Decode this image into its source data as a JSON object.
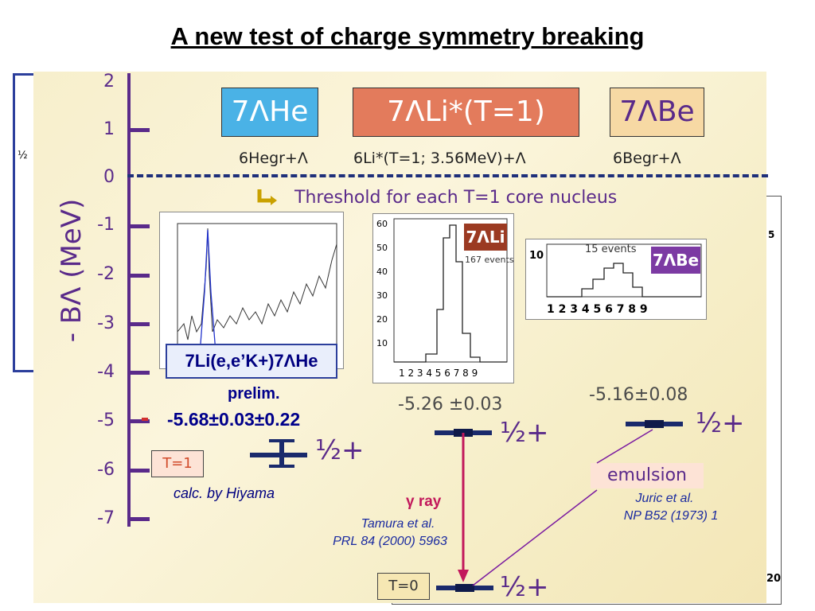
{
  "title": "A new test of charge symmetry breaking",
  "y_axis": {
    "label": "- BΛ (MeV)",
    "ticks": [
      "2",
      "1",
      "0",
      "-1",
      "-2",
      "-3",
      "-4",
      "-5",
      "-6",
      "-7"
    ]
  },
  "hypernuclei": [
    {
      "label": "7ΛHe",
      "core": "6Hegr+Λ",
      "color": "#4ab2e6"
    },
    {
      "label": "7ΛLi*(T=1)",
      "core": "6Li*(T=1;  3.56MeV)+Λ",
      "color": "#e37b5c"
    },
    {
      "label": "7ΛBe",
      "core": "6Begr+Λ",
      "color": "#f7d9a4"
    }
  ],
  "threshold_note": "Threshold for each T=1 core nucleus",
  "he_inset": {
    "reaction": "7Li(e,e’K+)7ΛHe",
    "status": "prelim.",
    "value": "-5.68±0.03±0.22",
    "spin": "½+",
    "calc_label": "T=1",
    "calc_note": "calc. by Hiyama"
  },
  "li_inset": {
    "badge": "7ΛLi",
    "events": "167 events",
    "y_ticks": [
      "60",
      "50",
      "40",
      "30",
      "20",
      "10"
    ],
    "x_ticks": [
      "1",
      "2",
      "3",
      "4",
      "5",
      "6",
      "7",
      "8",
      "9"
    ],
    "value": "-5.26 ±0.03",
    "spin": "½+",
    "gamma_label": "γ ray",
    "gamma_ref_1": "Tamura et al.",
    "gamma_ref_2": "PRL 84 (2000) 5963",
    "ground_label": "T=0",
    "ground_spin": "½+"
  },
  "be_inset": {
    "badge": "7ΛBe",
    "events": "15 events",
    "y_tick": "10",
    "x_ticks": [
      "1",
      "2",
      "3",
      "4",
      "5",
      "6",
      "7",
      "8",
      "9"
    ],
    "value": "-5.16±0.08",
    "spin": "½+",
    "method": "emulsion",
    "ref_1": "Juric et al.",
    "ref_2": "NP B52 (1973) 1"
  },
  "bg_fragments": {
    "left_label": "½",
    "right_top": "5",
    "right_bottom": "20"
  }
}
